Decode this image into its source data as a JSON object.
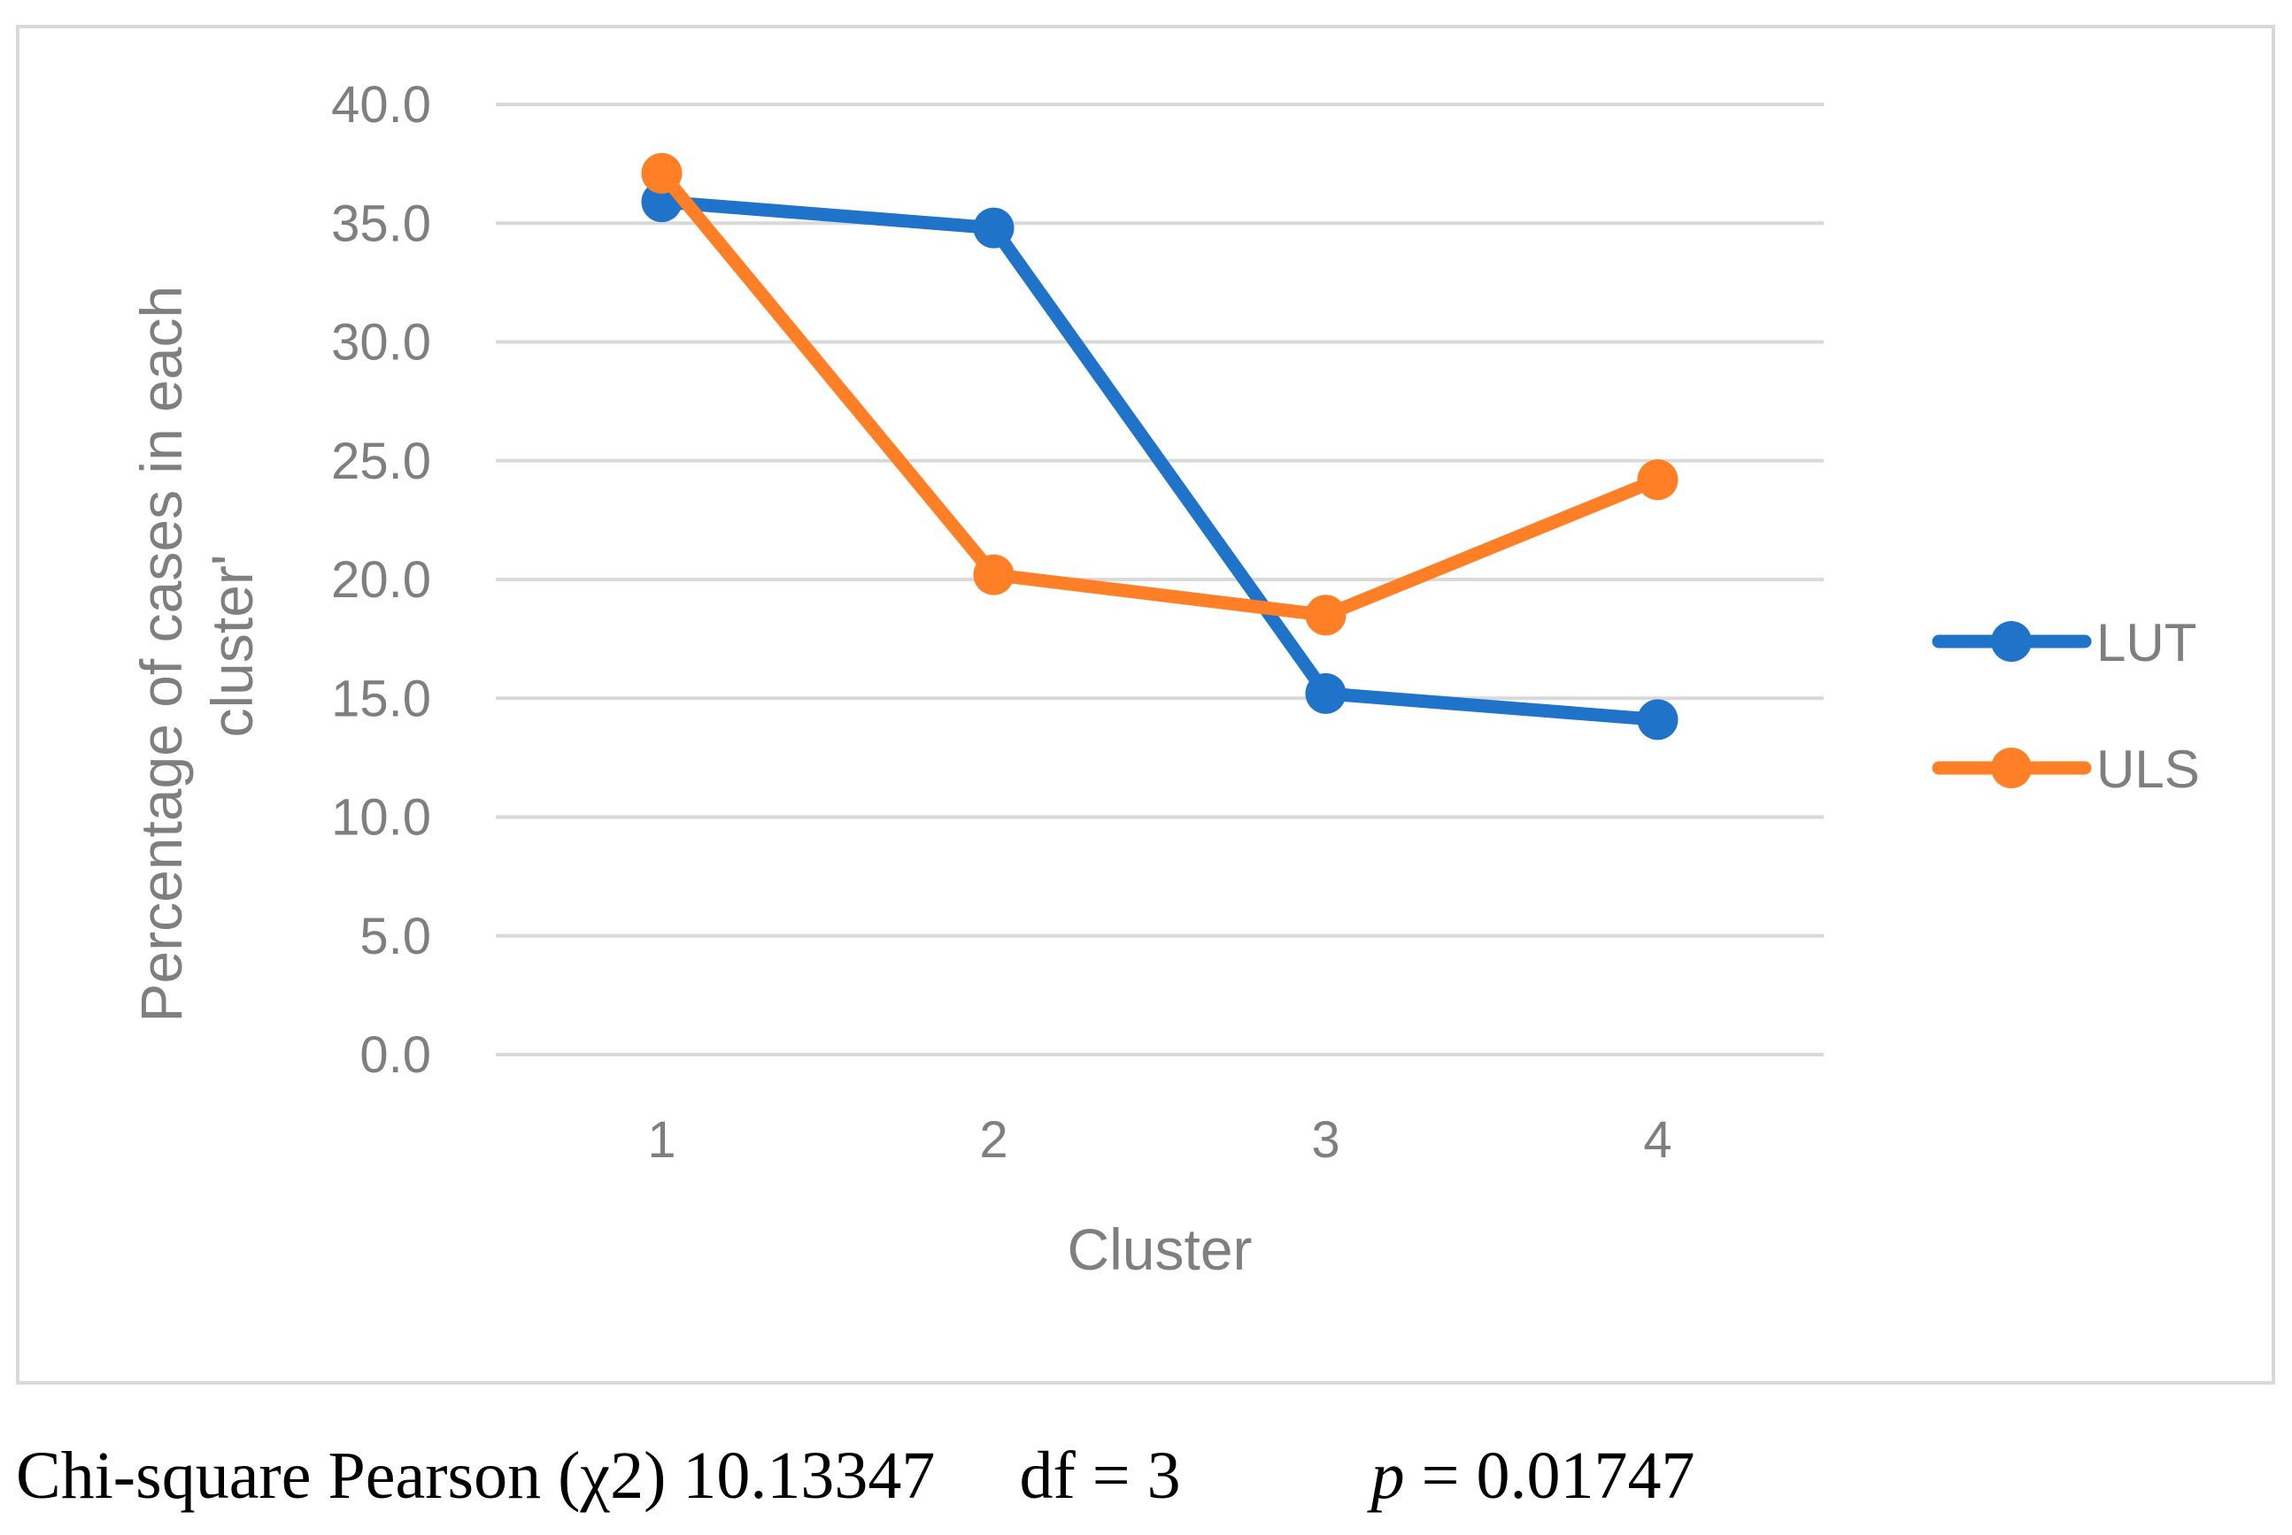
{
  "chart_data": {
    "type": "line",
    "categories": [
      "1",
      "2",
      "3",
      "4"
    ],
    "series": [
      {
        "name": "LUT",
        "color": "#1f73c8",
        "values": [
          35.9,
          34.8,
          15.2,
          14.1
        ]
      },
      {
        "name": "ULS",
        "color": "#ff7f27",
        "values": [
          37.1,
          20.2,
          18.5,
          24.2
        ]
      }
    ],
    "xlabel": "Cluster",
    "ylabel_line1": "Percentage of cases in each",
    "ylabel_line2": "cluster'",
    "ylim": [
      0,
      40
    ],
    "yticks": [
      "0.0",
      "5.0",
      "10.0",
      "15.0",
      "20.0",
      "25.0",
      "30.0",
      "35.0",
      "40.0"
    ],
    "grid": true,
    "legend_position": "right"
  },
  "caption": {
    "stat": "Chi-square Pearson (χ2) 10.13347",
    "df": "df = 3",
    "p_symbol": "p",
    "p_value": "= 0.01747"
  }
}
